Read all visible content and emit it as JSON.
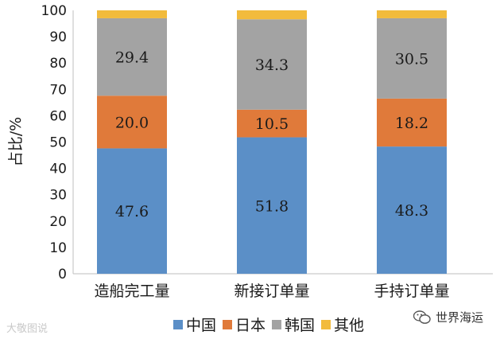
{
  "chart_data": {
    "type": "bar",
    "stacked": true,
    "categories": [
      "造船完工量",
      "新接订单量",
      "手持订单量"
    ],
    "series": [
      {
        "name": "中国",
        "color": "#5b8fc7",
        "values": [
          47.6,
          51.8,
          48.3
        ]
      },
      {
        "name": "日本",
        "color": "#e07a3a",
        "values": [
          20.0,
          10.5,
          18.2
        ]
      },
      {
        "name": "韩国",
        "color": "#a3a3a3",
        "values": [
          29.4,
          34.3,
          30.5
        ]
      },
      {
        "name": "其他",
        "color": "#f2bb3c",
        "values": [
          3.0,
          3.4,
          3.0
        ]
      }
    ],
    "labeled_series": [
      "中国",
      "日本",
      "韩国"
    ],
    "ylabel": "占比/%",
    "ylim": [
      0,
      100
    ],
    "yticks": [
      "0",
      "10",
      "20",
      "30",
      "40",
      "50",
      "60",
      "70",
      "80",
      "90",
      "100"
    ],
    "grid": false,
    "legend_position": "bottom"
  },
  "watermarks": {
    "left": "大敬图说",
    "right": "世界海运"
  }
}
